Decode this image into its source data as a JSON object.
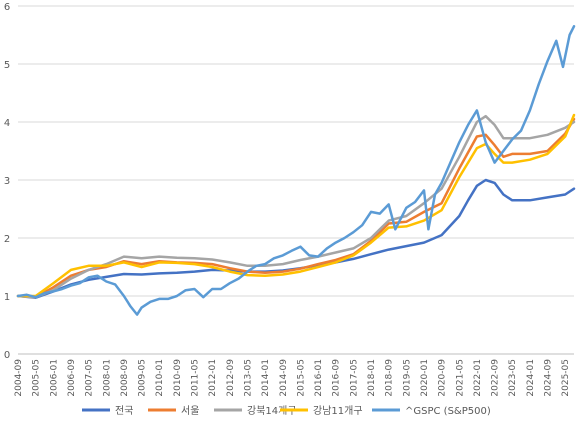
{
  "chart_data": {
    "type": "line",
    "title": "",
    "xlabel": "",
    "ylabel": "",
    "ylim": [
      0,
      6
    ],
    "yticks": [
      0,
      1,
      2,
      3,
      4,
      5,
      6
    ],
    "xlim": [
      "2004-09",
      "2025-09"
    ],
    "xtick_labels": [
      "2004-09",
      "2005-05",
      "2006-01",
      "2006-09",
      "2007-05",
      "2008-01",
      "2008-09",
      "2009-05",
      "2010-01",
      "2010-09",
      "2011-05",
      "2012-01",
      "2012-09",
      "2013-05",
      "2014-01",
      "2014-09",
      "2015-05",
      "2016-01",
      "2016-09",
      "2017-05",
      "2018-01",
      "2018-09",
      "2019-05",
      "2020-01",
      "2020-09",
      "2021-05",
      "2022-01",
      "2022-09",
      "2023-05",
      "2024-01",
      "2024-09",
      "2025-05"
    ],
    "grid": "horizontal",
    "legend_position": "bottom",
    "series": [
      {
        "name": "전국",
        "color": "#4472c4",
        "points": [
          [
            "2004-09",
            1.0
          ],
          [
            "2005-05",
            0.97
          ],
          [
            "2006-01",
            1.08
          ],
          [
            "2006-09",
            1.2
          ],
          [
            "2007-05",
            1.28
          ],
          [
            "2008-01",
            1.33
          ],
          [
            "2008-09",
            1.38
          ],
          [
            "2009-05",
            1.37
          ],
          [
            "2010-01",
            1.39
          ],
          [
            "2010-09",
            1.4
          ],
          [
            "2011-05",
            1.42
          ],
          [
            "2012-01",
            1.45
          ],
          [
            "2012-09",
            1.44
          ],
          [
            "2013-05",
            1.42
          ],
          [
            "2014-01",
            1.42
          ],
          [
            "2014-09",
            1.44
          ],
          [
            "2015-05",
            1.48
          ],
          [
            "2016-01",
            1.53
          ],
          [
            "2016-09",
            1.58
          ],
          [
            "2017-05",
            1.64
          ],
          [
            "2018-01",
            1.72
          ],
          [
            "2018-09",
            1.8
          ],
          [
            "2019-05",
            1.86
          ],
          [
            "2020-01",
            1.92
          ],
          [
            "2020-09",
            2.05
          ],
          [
            "2021-05",
            2.38
          ],
          [
            "2021-09",
            2.65
          ],
          [
            "2022-01",
            2.9
          ],
          [
            "2022-05",
            3.0
          ],
          [
            "2022-09",
            2.95
          ],
          [
            "2023-01",
            2.75
          ],
          [
            "2023-05",
            2.65
          ],
          [
            "2024-01",
            2.65
          ],
          [
            "2024-09",
            2.7
          ],
          [
            "2025-05",
            2.75
          ],
          [
            "2025-09",
            2.85
          ]
        ]
      },
      {
        "name": "서울",
        "color": "#ed7d31",
        "points": [
          [
            "2004-09",
            1.0
          ],
          [
            "2005-05",
            0.98
          ],
          [
            "2006-01",
            1.15
          ],
          [
            "2006-09",
            1.35
          ],
          [
            "2007-05",
            1.45
          ],
          [
            "2008-01",
            1.5
          ],
          [
            "2008-09",
            1.6
          ],
          [
            "2009-05",
            1.55
          ],
          [
            "2010-01",
            1.6
          ],
          [
            "2010-09",
            1.58
          ],
          [
            "2011-05",
            1.57
          ],
          [
            "2012-01",
            1.55
          ],
          [
            "2012-09",
            1.48
          ],
          [
            "2013-05",
            1.42
          ],
          [
            "2014-01",
            1.4
          ],
          [
            "2014-09",
            1.42
          ],
          [
            "2015-05",
            1.47
          ],
          [
            "2016-01",
            1.55
          ],
          [
            "2016-09",
            1.62
          ],
          [
            "2017-05",
            1.72
          ],
          [
            "2018-01",
            1.95
          ],
          [
            "2018-09",
            2.25
          ],
          [
            "2019-05",
            2.28
          ],
          [
            "2020-01",
            2.45
          ],
          [
            "2020-09",
            2.6
          ],
          [
            "2021-05",
            3.2
          ],
          [
            "2022-01",
            3.75
          ],
          [
            "2022-05",
            3.78
          ],
          [
            "2022-09",
            3.6
          ],
          [
            "2023-01",
            3.4
          ],
          [
            "2023-05",
            3.45
          ],
          [
            "2024-01",
            3.45
          ],
          [
            "2024-09",
            3.5
          ],
          [
            "2025-05",
            3.8
          ],
          [
            "2025-09",
            4.05
          ]
        ]
      },
      {
        "name": "강북14개구",
        "color": "#a5a5a5",
        "points": [
          [
            "2004-09",
            1.0
          ],
          [
            "2005-05",
            0.98
          ],
          [
            "2006-01",
            1.1
          ],
          [
            "2006-09",
            1.3
          ],
          [
            "2007-05",
            1.45
          ],
          [
            "2008-01",
            1.55
          ],
          [
            "2008-09",
            1.68
          ],
          [
            "2009-05",
            1.65
          ],
          [
            "2010-01",
            1.68
          ],
          [
            "2010-09",
            1.66
          ],
          [
            "2011-05",
            1.65
          ],
          [
            "2012-01",
            1.63
          ],
          [
            "2012-09",
            1.58
          ],
          [
            "2013-05",
            1.52
          ],
          [
            "2014-01",
            1.52
          ],
          [
            "2014-09",
            1.55
          ],
          [
            "2015-05",
            1.62
          ],
          [
            "2016-01",
            1.68
          ],
          [
            "2016-09",
            1.75
          ],
          [
            "2017-05",
            1.82
          ],
          [
            "2018-01",
            2.0
          ],
          [
            "2018-09",
            2.3
          ],
          [
            "2019-05",
            2.38
          ],
          [
            "2020-01",
            2.6
          ],
          [
            "2020-09",
            2.85
          ],
          [
            "2021-05",
            3.4
          ],
          [
            "2022-01",
            4.0
          ],
          [
            "2022-05",
            4.1
          ],
          [
            "2022-09",
            3.95
          ],
          [
            "2023-01",
            3.72
          ],
          [
            "2023-05",
            3.72
          ],
          [
            "2024-01",
            3.72
          ],
          [
            "2024-09",
            3.78
          ],
          [
            "2025-05",
            3.9
          ],
          [
            "2025-09",
            4.0
          ]
        ]
      },
      {
        "name": "강남11개구",
        "color": "#ffc000",
        "points": [
          [
            "2004-09",
            1.0
          ],
          [
            "2005-05",
            1.0
          ],
          [
            "2006-01",
            1.22
          ],
          [
            "2006-09",
            1.45
          ],
          [
            "2007-05",
            1.52
          ],
          [
            "2008-01",
            1.52
          ],
          [
            "2008-09",
            1.58
          ],
          [
            "2009-05",
            1.5
          ],
          [
            "2010-01",
            1.58
          ],
          [
            "2010-09",
            1.57
          ],
          [
            "2011-05",
            1.55
          ],
          [
            "2012-01",
            1.5
          ],
          [
            "2012-09",
            1.42
          ],
          [
            "2013-05",
            1.36
          ],
          [
            "2014-01",
            1.35
          ],
          [
            "2014-09",
            1.37
          ],
          [
            "2015-05",
            1.42
          ],
          [
            "2016-01",
            1.5
          ],
          [
            "2016-09",
            1.58
          ],
          [
            "2017-05",
            1.7
          ],
          [
            "2018-01",
            1.92
          ],
          [
            "2018-09",
            2.18
          ],
          [
            "2019-05",
            2.2
          ],
          [
            "2020-01",
            2.3
          ],
          [
            "2020-09",
            2.48
          ],
          [
            "2021-05",
            3.05
          ],
          [
            "2022-01",
            3.55
          ],
          [
            "2022-05",
            3.62
          ],
          [
            "2022-09",
            3.45
          ],
          [
            "2023-01",
            3.3
          ],
          [
            "2023-05",
            3.3
          ],
          [
            "2024-01",
            3.35
          ],
          [
            "2024-09",
            3.45
          ],
          [
            "2025-05",
            3.75
          ],
          [
            "2025-09",
            4.12
          ]
        ]
      },
      {
        "name": "^GSPC (S&P500)",
        "color": "#5b9bd5",
        "points": [
          [
            "2004-09",
            1.0
          ],
          [
            "2005-01",
            1.02
          ],
          [
            "2005-05",
            0.98
          ],
          [
            "2005-09",
            1.05
          ],
          [
            "2006-01",
            1.08
          ],
          [
            "2006-05",
            1.12
          ],
          [
            "2006-09",
            1.18
          ],
          [
            "2007-01",
            1.22
          ],
          [
            "2007-05",
            1.32
          ],
          [
            "2007-09",
            1.35
          ],
          [
            "2008-01",
            1.25
          ],
          [
            "2008-05",
            1.2
          ],
          [
            "2008-09",
            1.0
          ],
          [
            "2008-12",
            0.82
          ],
          [
            "2009-03",
            0.68
          ],
          [
            "2009-05",
            0.8
          ],
          [
            "2009-09",
            0.9
          ],
          [
            "2010-01",
            0.95
          ],
          [
            "2010-05",
            0.95
          ],
          [
            "2010-09",
            1.0
          ],
          [
            "2011-01",
            1.1
          ],
          [
            "2011-05",
            1.12
          ],
          [
            "2011-09",
            0.98
          ],
          [
            "2012-01",
            1.12
          ],
          [
            "2012-05",
            1.12
          ],
          [
            "2012-09",
            1.22
          ],
          [
            "2013-01",
            1.3
          ],
          [
            "2013-05",
            1.42
          ],
          [
            "2013-09",
            1.52
          ],
          [
            "2014-01",
            1.55
          ],
          [
            "2014-05",
            1.65
          ],
          [
            "2014-09",
            1.7
          ],
          [
            "2015-01",
            1.78
          ],
          [
            "2015-05",
            1.85
          ],
          [
            "2015-09",
            1.7
          ],
          [
            "2016-01",
            1.68
          ],
          [
            "2016-05",
            1.82
          ],
          [
            "2016-09",
            1.92
          ],
          [
            "2017-01",
            2.0
          ],
          [
            "2017-05",
            2.1
          ],
          [
            "2017-09",
            2.22
          ],
          [
            "2018-01",
            2.45
          ],
          [
            "2018-05",
            2.42
          ],
          [
            "2018-09",
            2.58
          ],
          [
            "2018-12",
            2.15
          ],
          [
            "2019-05",
            2.52
          ],
          [
            "2019-09",
            2.62
          ],
          [
            "2020-01",
            2.82
          ],
          [
            "2020-03",
            2.15
          ],
          [
            "2020-06",
            2.75
          ],
          [
            "2020-09",
            2.95
          ],
          [
            "2021-01",
            3.3
          ],
          [
            "2021-05",
            3.65
          ],
          [
            "2021-09",
            3.95
          ],
          [
            "2022-01",
            4.2
          ],
          [
            "2022-05",
            3.65
          ],
          [
            "2022-09",
            3.3
          ],
          [
            "2022-12",
            3.45
          ],
          [
            "2023-05",
            3.7
          ],
          [
            "2023-09",
            3.85
          ],
          [
            "2024-01",
            4.2
          ],
          [
            "2024-05",
            4.65
          ],
          [
            "2024-09",
            5.05
          ],
          [
            "2025-01",
            5.4
          ],
          [
            "2025-04",
            4.95
          ],
          [
            "2025-07",
            5.5
          ],
          [
            "2025-09",
            5.65
          ]
        ]
      }
    ]
  }
}
